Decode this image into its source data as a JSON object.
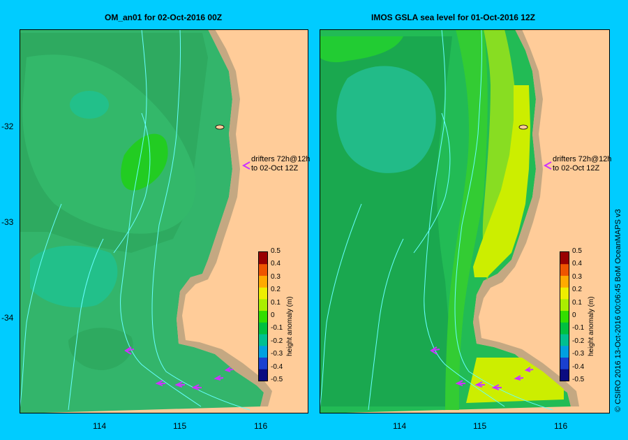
{
  "panels": {
    "left": {
      "title": "OM_an01  for 02-Oct-2016 00Z"
    },
    "right": {
      "title": "IMOS GSLA sea level  for 01-Oct-2016 12Z"
    }
  },
  "axes": {
    "lat_ticks": [
      "-32",
      "-33",
      "-34"
    ],
    "lon_ticks": [
      "114",
      "115",
      "116"
    ]
  },
  "annotation": {
    "line1": "drifters 72h@12h",
    "line2": "to 02-Oct 12Z",
    "arrow_color": "#cc33ff"
  },
  "colorbar": {
    "label": "height anomaly (m)",
    "ticks": [
      "0.5",
      "0.4",
      "0.3",
      "0.2",
      "0.1",
      "0",
      "-0.1",
      "-0.2",
      "-0.3",
      "-0.4",
      "-0.5"
    ],
    "colors": [
      "#0b0b80",
      "#1a40d0",
      "#00a0e0",
      "#00c090",
      "#00c040",
      "#33dd00",
      "#aaee00",
      "#eeee00",
      "#ffaa00",
      "#ee5500",
      "#990000"
    ]
  },
  "colors": {
    "land": "#ffcc99",
    "coast": "#c4a882",
    "background": "#00ccff",
    "contour": "#66ffff"
  },
  "credit": "© CSIRO 2016   13-Oct-2016 00:06:45 BoM OceanMAPS v3"
}
